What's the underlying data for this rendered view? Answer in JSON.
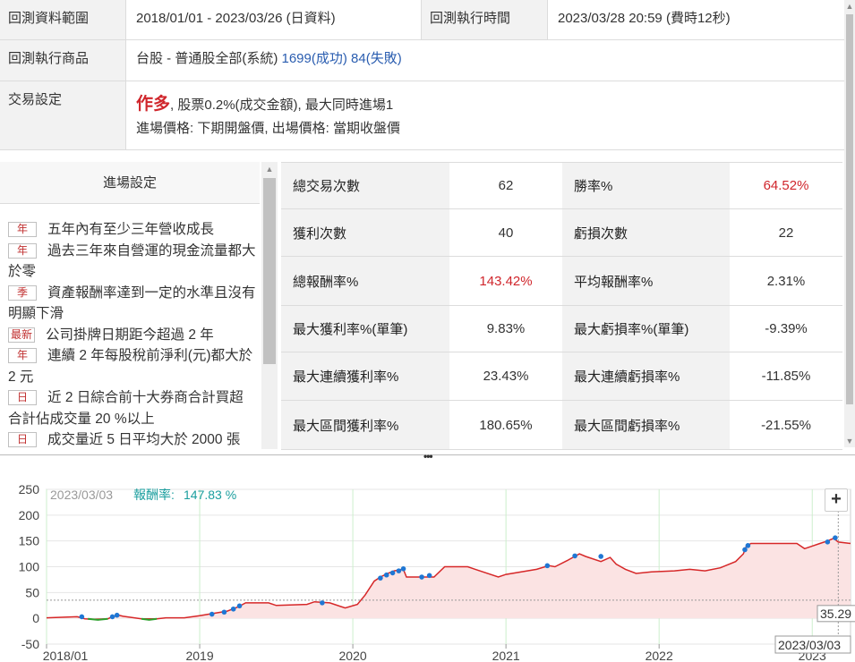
{
  "info": {
    "range_label": "回測資料範圍",
    "range_value": "2018/01/01 - 2023/03/26 (日資料)",
    "exec_time_label": "回測執行時間",
    "exec_time_value": "2023/03/28 20:59 (費時12秒)",
    "product_label": "回測執行商品",
    "product_name": "台股 - 普通股全部(系統)",
    "product_success": "1699(成功)",
    "product_fail": "84(失敗)",
    "trade_label": "交易設定",
    "trade_direction": "作多",
    "trade_detail": ", 股票0.2%(成交金額), 最大同時進場1",
    "trade_price": "進場價格: 下期開盤價, 出場價格: 當期收盤價"
  },
  "entry": {
    "title": "進場設定",
    "items": [
      {
        "tag": "年",
        "text": "五年內有至少三年營收成長"
      },
      {
        "tag": "年",
        "text": "過去三年來自營運的現金流量都大於零"
      },
      {
        "tag": "季",
        "text": "資產報酬率達到一定的水準且沒有明顯下滑"
      },
      {
        "tag": "最新",
        "text": "公司掛牌日期距今超過 2 年"
      },
      {
        "tag": "年",
        "text": "連續 2 年每股稅前淨利(元)都大於 2 元"
      },
      {
        "tag": "日",
        "text": "近 2 日綜合前十大券商合計買超合計佔成交量 20 %以上"
      },
      {
        "tag": "日",
        "text": "成交量近 5 日平均大於 2000 張"
      }
    ]
  },
  "stats": {
    "rows": [
      {
        "l1": "總交易次數",
        "v1": "62",
        "l2": "勝率%",
        "v2": "64.52%",
        "v2_red": true
      },
      {
        "l1": "獲利次數",
        "v1": "40",
        "l2": "虧損次數",
        "v2": "22"
      },
      {
        "l1": "總報酬率%",
        "v1": "143.42%",
        "v1_red": true,
        "l2": "平均報酬率%",
        "v2": "2.31%"
      },
      {
        "l1": "最大獲利率%(單筆)",
        "v1": "9.83%",
        "l2": "最大虧損率%(單筆)",
        "v2": "-9.39%"
      },
      {
        "l1": "最大連續獲利率%",
        "v1": "23.43%",
        "l2": "最大連續虧損率%",
        "v2": "-11.85%"
      },
      {
        "l1": "最大區間獲利率%",
        "v1": "180.65%",
        "l2": "最大區間虧損率%",
        "v2": "-21.55%"
      }
    ]
  },
  "chart_data": {
    "type": "area",
    "tooltip_date": "2023/03/03",
    "tooltip_label": "報酬率:",
    "tooltip_value": "147.83 %",
    "crosshair_value": "35.29",
    "crosshair_date": "2023/03/03",
    "y_ticks": [
      250,
      200,
      150,
      100,
      50,
      0,
      -50
    ],
    "x_ticks": [
      "2018/01",
      "2019",
      "2020",
      "2021",
      "2022",
      "2023"
    ],
    "ylim": [
      -50,
      250
    ],
    "xlim": [
      2018.0,
      2023.25
    ],
    "colors": {
      "line": "#d62728",
      "fill": "#fbe3e3",
      "neg": "#2ca02c",
      "marker": "#1f77d4"
    },
    "series": [
      {
        "values": [
          [
            2018.0,
            1
          ],
          [
            2018.2,
            3
          ],
          [
            2018.25,
            -1
          ],
          [
            2018.3,
            -2
          ],
          [
            2018.4,
            -1
          ],
          [
            2018.43,
            3
          ],
          [
            2018.47,
            6
          ],
          [
            2018.5,
            4
          ],
          [
            2018.62,
            -1
          ],
          [
            2018.72,
            -1
          ],
          [
            2018.78,
            1
          ],
          [
            2018.9,
            1
          ],
          [
            2019.0,
            5
          ],
          [
            2019.1,
            10
          ],
          [
            2019.18,
            14
          ],
          [
            2019.25,
            22
          ],
          [
            2019.3,
            30
          ],
          [
            2019.45,
            30
          ],
          [
            2019.5,
            25
          ],
          [
            2019.7,
            27
          ],
          [
            2019.75,
            32
          ],
          [
            2019.85,
            30
          ],
          [
            2019.95,
            20
          ],
          [
            2020.03,
            27
          ],
          [
            2020.08,
            45
          ],
          [
            2020.14,
            72
          ],
          [
            2020.18,
            80
          ],
          [
            2020.22,
            86
          ],
          [
            2020.27,
            92
          ],
          [
            2020.33,
            95
          ],
          [
            2020.35,
            80
          ],
          [
            2020.53,
            80
          ],
          [
            2020.6,
            100
          ],
          [
            2020.75,
            100
          ],
          [
            2020.8,
            95
          ],
          [
            2020.95,
            80
          ],
          [
            2021.0,
            85
          ],
          [
            2021.2,
            95
          ],
          [
            2021.28,
            102
          ],
          [
            2021.32,
            100
          ],
          [
            2021.4,
            112
          ],
          [
            2021.48,
            125
          ],
          [
            2021.52,
            120
          ],
          [
            2021.62,
            110
          ],
          [
            2021.68,
            118
          ],
          [
            2021.72,
            105
          ],
          [
            2021.78,
            95
          ],
          [
            2021.85,
            87
          ],
          [
            2021.95,
            90
          ],
          [
            2022.1,
            92
          ],
          [
            2022.2,
            95
          ],
          [
            2022.3,
            92
          ],
          [
            2022.4,
            98
          ],
          [
            2022.5,
            110
          ],
          [
            2022.55,
            125
          ],
          [
            2022.57,
            140
          ],
          [
            2022.6,
            145
          ],
          [
            2022.9,
            145
          ],
          [
            2022.95,
            135
          ],
          [
            2023.0,
            140
          ],
          [
            2023.05,
            145
          ],
          [
            2023.1,
            150
          ],
          [
            2023.14,
            155
          ],
          [
            2023.17,
            147.83
          ],
          [
            2023.25,
            145
          ]
        ]
      }
    ],
    "neg_segments": [
      [
        2018.27,
        2018.4
      ],
      [
        2018.62,
        2018.72
      ]
    ],
    "markers": [
      [
        2018.23,
        3
      ],
      [
        2018.43,
        3
      ],
      [
        2018.46,
        6
      ],
      [
        2019.08,
        8
      ],
      [
        2019.16,
        12
      ],
      [
        2019.22,
        18
      ],
      [
        2019.26,
        24
      ],
      [
        2019.8,
        30
      ],
      [
        2020.18,
        78
      ],
      [
        2020.22,
        84
      ],
      [
        2020.26,
        88
      ],
      [
        2020.3,
        92
      ],
      [
        2020.33,
        96
      ],
      [
        2020.45,
        80
      ],
      [
        2020.5,
        83
      ],
      [
        2021.27,
        102
      ],
      [
        2021.45,
        121
      ],
      [
        2021.62,
        120
      ],
      [
        2022.56,
        133
      ],
      [
        2022.58,
        141
      ],
      [
        2023.1,
        148
      ],
      [
        2023.15,
        156
      ]
    ]
  }
}
